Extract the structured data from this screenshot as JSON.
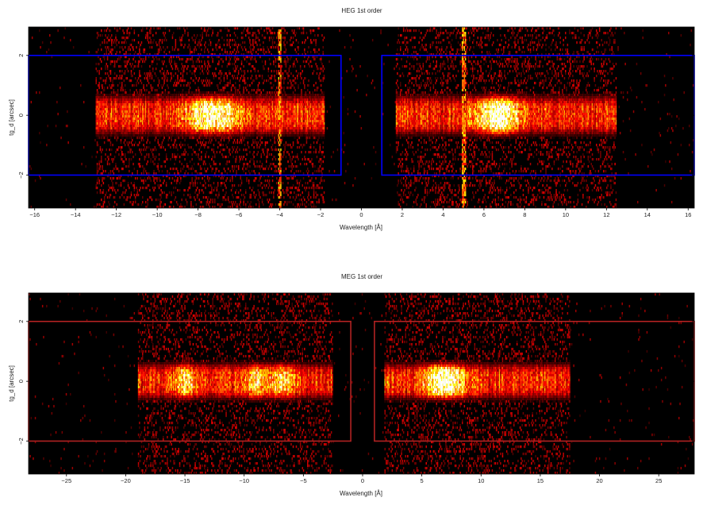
{
  "chart_data": [
    {
      "type": "heatmap",
      "title": "HEG 1st order",
      "xlabel": "Wavelength [Å]",
      "ylabel": "tg_d [arcsec]",
      "xlim": [
        -16.3,
        16.3
      ],
      "ylim": [
        -3.1,
        2.95
      ],
      "xticks": [
        -16,
        -14,
        -12,
        -10,
        -8,
        -6,
        -4,
        -2,
        0,
        2,
        4,
        6,
        8,
        10,
        12,
        14,
        16
      ],
      "xtick_labels": [
        "−16",
        "−14",
        "−12",
        "−10",
        "−8",
        "−6",
        "−4",
        "−2",
        "0",
        "2",
        "4",
        "6",
        "8",
        "10",
        "12",
        "14",
        "16"
      ],
      "yticks": [
        -2,
        0,
        2
      ],
      "ytick_labels": [
        "−2",
        "0",
        "2"
      ],
      "colormap": "hot",
      "background": "#000000",
      "region_color": "#0000ff",
      "regions": [
        {
          "x": [
            -16.3,
            -1.0
          ],
          "y": [
            -2.0,
            2.0
          ]
        },
        {
          "x": [
            1.0,
            16.3
          ],
          "y": [
            -2.0,
            2.0
          ]
        }
      ],
      "band_center": 0.0,
      "band_halfwidth": 0.6,
      "data_extent": [
        [
          -13.0,
          -1.8
        ],
        [
          1.7,
          12.5
        ]
      ],
      "bright_peaks": [
        -7.8,
        -6.7,
        6.5,
        6.8
      ],
      "vertical_streaks": [
        -4.0,
        5.0
      ]
    },
    {
      "type": "heatmap",
      "title": "MEG 1st order",
      "xlabel": "Wavelength [Å]",
      "ylabel": "tg_d [arcsec]",
      "xlim": [
        -28.2,
        28.0
      ],
      "ylim": [
        -3.1,
        2.95
      ],
      "xticks": [
        -25,
        -20,
        -15,
        -10,
        -5,
        0,
        5,
        10,
        15,
        20,
        25
      ],
      "xtick_labels": [
        "−25",
        "−20",
        "−15",
        "−10",
        "−5",
        "0",
        "5",
        "10",
        "15",
        "20",
        "25"
      ],
      "yticks": [
        -2,
        0,
        2
      ],
      "ytick_labels": [
        "−2",
        "0",
        "2"
      ],
      "colormap": "hot",
      "background": "#000000",
      "region_color": "#b22222",
      "regions": [
        {
          "x": [
            -28.2,
            -1.0
          ],
          "y": [
            -2.0,
            2.0
          ]
        },
        {
          "x": [
            1.0,
            28.0
          ],
          "y": [
            -2.0,
            2.0
          ]
        }
      ],
      "band_center": 0.0,
      "band_halfwidth": 0.55,
      "data_extent": [
        [
          -19.0,
          -2.5
        ],
        [
          1.8,
          17.5
        ]
      ],
      "bright_peaks": [
        -6.7,
        -8.9,
        -15.0,
        6.0,
        7.0,
        8.0
      ],
      "vertical_streaks": []
    }
  ]
}
